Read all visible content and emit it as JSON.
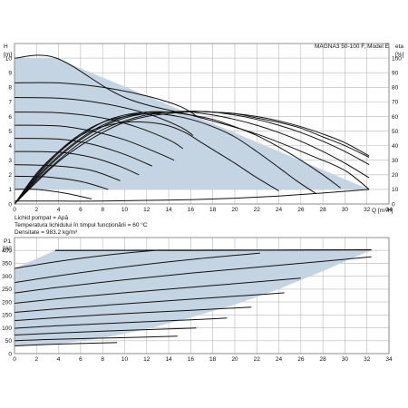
{
  "colors": {
    "fill": "#c5d4e2",
    "curve": "#111111",
    "grid": "#b9b9b9",
    "frame": "#777777"
  },
  "notes": [
    "Lichid pompat = Apă",
    "Temperatura lichidului în timpul funcționării = 60 °C",
    "Densitate = 983.2 kg/m³"
  ],
  "chart_data": [
    {
      "type": "line",
      "title": "MAGNA3 50-100 F, Model E",
      "ylabel": "H",
      "yunit": "[m]",
      "y2label": "eta",
      "y2unit": "[%]",
      "xlabel": "Q [m³/h]",
      "xlim": [
        0,
        34
      ],
      "ylim": [
        0,
        11
      ],
      "y2lim": [
        0,
        110
      ],
      "x_ticks": [
        0,
        2,
        4,
        6,
        8,
        10,
        12,
        14,
        16,
        18,
        20,
        22,
        24,
        26,
        28,
        30,
        32,
        34
      ],
      "y_ticks": [
        0,
        1,
        2,
        3,
        4,
        5,
        6,
        7,
        8,
        9,
        10
      ],
      "y2_ticks": [
        0,
        10,
        20,
        30,
        40,
        50,
        60,
        70,
        80,
        90,
        100
      ],
      "grid": true,
      "operating_envelope": [
        [
          0,
          10
        ],
        [
          3.8,
          10
        ],
        [
          16.5,
          6.0
        ],
        [
          32.2,
          1.0
        ],
        [
          0,
          1.0
        ]
      ],
      "series": [
        {
          "values": [
            [
              0,
              10
            ],
            [
              3.8,
              10
            ],
            [
              10,
              7.3
            ],
            [
              16.5,
              6.0
            ],
            [
              22,
              4.8
            ],
            [
              27,
              3.3
            ],
            [
              30,
              2.3
            ],
            [
              32.2,
              1.0
            ]
          ]
        },
        {
          "values": [
            [
              0,
              8.3
            ],
            [
              4,
              8.3
            ],
            [
              8,
              8.0
            ],
            [
              12,
              7.4
            ],
            [
              15,
              6.7
            ],
            [
              16.6,
              6.0
            ]
          ]
        },
        {
          "values": [
            [
              0,
              7.3
            ],
            [
              4,
              7.25
            ],
            [
              8,
              6.9
            ],
            [
              12,
              6.2
            ],
            [
              15,
              5.3
            ],
            [
              16.2,
              4.7
            ]
          ]
        },
        {
          "values": [
            [
              0,
              6.3
            ],
            [
              4,
              6.25
            ],
            [
              8,
              5.9
            ],
            [
              11,
              5.3
            ],
            [
              14,
              4.4
            ],
            [
              15.3,
              3.8
            ]
          ]
        },
        {
          "values": [
            [
              0,
              5.4
            ],
            [
              4,
              5.35
            ],
            [
              7,
              5.0
            ],
            [
              10,
              4.4
            ],
            [
              13,
              3.5
            ],
            [
              14.5,
              3.0
            ]
          ]
        },
        {
          "values": [
            [
              0,
              4.5
            ],
            [
              4,
              4.45
            ],
            [
              7,
              4.1
            ],
            [
              10,
              3.4
            ],
            [
              12.5,
              2.6
            ]
          ]
        },
        {
          "values": [
            [
              0,
              3.6
            ],
            [
              4,
              3.55
            ],
            [
              7,
              3.2
            ],
            [
              9.5,
              2.6
            ],
            [
              11.3,
              2.0
            ]
          ]
        },
        {
          "values": [
            [
              0,
              2.7
            ],
            [
              4,
              2.6
            ],
            [
              7,
              2.3
            ],
            [
              9.6,
              1.6
            ]
          ]
        },
        {
          "values": [
            [
              0,
              1.9
            ],
            [
              3,
              1.85
            ],
            [
              6,
              1.55
            ],
            [
              8.5,
              1.0
            ]
          ]
        },
        {
          "values": [
            [
              0,
              1.0
            ],
            [
              2,
              1.0
            ],
            [
              4.5,
              0.75
            ],
            [
              7,
              0.35
            ]
          ]
        },
        {
          "values": [
            [
              0,
              0
            ],
            [
              2,
              2.1
            ],
            [
              4,
              3.6
            ],
            [
              6,
              4.7
            ],
            [
              8,
              5.3
            ],
            [
              10,
              5.6
            ],
            [
              12,
              5.6
            ],
            [
              13.8,
              5.4
            ],
            [
              15.5,
              4.9
            ],
            [
              17,
              4.2
            ],
            [
              18.5,
              3.5
            ],
            [
              20,
              2.8
            ],
            [
              21.8,
              1.9
            ],
            [
              24,
              0.9
            ]
          ]
        },
        {
          "values": [
            [
              0,
              0
            ],
            [
              2,
              2.0
            ],
            [
              4,
              3.6
            ],
            [
              6,
              4.8
            ],
            [
              8,
              5.6
            ],
            [
              10,
              6.0
            ],
            [
              12,
              6.2
            ],
            [
              14,
              6.1
            ],
            [
              16,
              5.8
            ],
            [
              18,
              5.3
            ],
            [
              20,
              4.6
            ],
            [
              22,
              3.6
            ],
            [
              24,
              2.5
            ],
            [
              25.6,
              1.6
            ],
            [
              27.4,
              0.7
            ]
          ]
        },
        {
          "values": [
            [
              0,
              0
            ],
            [
              2,
              1.9
            ],
            [
              4,
              3.5
            ],
            [
              6,
              4.7
            ],
            [
              8,
              5.6
            ],
            [
              10,
              6.1
            ],
            [
              12,
              6.3
            ],
            [
              14,
              6.3
            ],
            [
              16,
              6.1
            ],
            [
              18,
              5.8
            ],
            [
              20,
              5.3
            ],
            [
              22,
              4.7
            ],
            [
              24,
              3.9
            ],
            [
              26,
              3.0
            ],
            [
              28,
              2.0
            ],
            [
              29.6,
              1.1
            ]
          ]
        },
        {
          "values": [
            [
              0,
              0
            ],
            [
              2,
              1.8
            ],
            [
              4,
              3.3
            ],
            [
              6,
              4.5
            ],
            [
              8,
              5.4
            ],
            [
              10,
              6.0
            ],
            [
              12,
              6.3
            ],
            [
              14,
              6.3
            ],
            [
              16,
              6.3
            ],
            [
              18,
              6.1
            ],
            [
              20,
              5.8
            ],
            [
              22,
              5.4
            ],
            [
              24,
              4.9
            ],
            [
              26,
              4.3
            ],
            [
              28,
              3.6
            ],
            [
              30,
              2.8
            ],
            [
              32.2,
              1.8
            ]
          ]
        },
        {
          "values": [
            [
              0,
              0
            ],
            [
              2,
              1.7
            ],
            [
              4,
              3.2
            ],
            [
              6,
              4.4
            ],
            [
              8,
              5.3
            ],
            [
              10,
              5.9
            ],
            [
              12,
              6.2
            ],
            [
              14,
              6.3
            ],
            [
              16,
              6.35
            ],
            [
              18,
              6.3
            ],
            [
              20,
              6.1
            ],
            [
              22,
              5.8
            ],
            [
              24,
              5.4
            ],
            [
              26,
              4.9
            ],
            [
              28,
              4.3
            ],
            [
              30,
              3.6
            ],
            [
              32.2,
              2.7
            ]
          ]
        },
        {
          "values": [
            [
              0,
              0
            ],
            [
              2,
              1.6
            ],
            [
              4,
              3.0
            ],
            [
              6,
              4.2
            ],
            [
              8,
              5.1
            ],
            [
              10,
              5.7
            ],
            [
              12,
              6.1
            ],
            [
              14,
              6.3
            ],
            [
              16,
              6.35
            ],
            [
              18,
              6.3
            ],
            [
              20,
              6.2
            ],
            [
              22,
              5.9
            ],
            [
              24,
              5.6
            ],
            [
              26,
              5.2
            ],
            [
              28,
              4.6
            ],
            [
              30,
              4.0
            ],
            [
              32.2,
              3.2
            ]
          ]
        },
        {
          "values": [
            [
              0,
              0
            ],
            [
              2,
              1.5
            ],
            [
              4,
              2.9
            ],
            [
              6,
              4.0
            ],
            [
              8,
              4.9
            ],
            [
              10,
              5.6
            ],
            [
              12,
              6.0
            ],
            [
              14,
              6.2
            ],
            [
              16,
              6.35
            ],
            [
              18,
              6.3
            ],
            [
              20,
              6.2
            ],
            [
              22,
              6.0
            ],
            [
              24,
              5.7
            ],
            [
              26,
              5.3
            ],
            [
              28,
              4.8
            ],
            [
              30,
              4.2
            ],
            [
              32.2,
              3.3
            ]
          ]
        },
        {
          "values": [
            [
              0,
              0.2
            ],
            [
              4,
              0.2
            ],
            [
              8,
              0.2
            ],
            [
              12,
              0.25
            ],
            [
              16,
              0.3
            ],
            [
              20,
              0.4
            ],
            [
              24,
              0.55
            ],
            [
              28,
              0.75
            ],
            [
              32.2,
              1.0
            ]
          ]
        }
      ]
    },
    {
      "type": "line",
      "ylabel": "P1",
      "yunit": "[W]",
      "xlim": [
        0,
        34
      ],
      "ylim": [
        0,
        450
      ],
      "x_ticks": [
        0,
        2,
        4,
        6,
        8,
        10,
        12,
        14,
        16,
        18,
        20,
        22,
        24,
        26,
        28,
        30,
        32,
        34
      ],
      "y_ticks": [
        0,
        50,
        100,
        150,
        200,
        250,
        300,
        350,
        400
      ],
      "grid": true,
      "operating_envelope": [
        [
          0,
          30
        ],
        [
          0,
          330
        ],
        [
          3.7,
          400
        ],
        [
          32.4,
          400
        ],
        [
          31.5,
          385
        ],
        [
          28,
          320
        ],
        [
          24,
          250
        ],
        [
          20,
          190
        ],
        [
          16,
          140
        ],
        [
          12,
          95
        ],
        [
          8,
          60
        ],
        [
          4,
          38
        ],
        [
          0,
          30
        ]
      ],
      "series": [
        {
          "values": [
            [
              3.7,
              400
            ],
            [
              14,
              401
            ],
            [
              24,
              402
            ],
            [
              32.4,
              403
            ]
          ]
        },
        {
          "values": [
            [
              0,
              330
            ],
            [
              4,
              358
            ],
            [
              9,
              385
            ],
            [
              12.7,
              400
            ]
          ]
        },
        {
          "values": [
            [
              0,
              275
            ],
            [
              4,
              302
            ],
            [
              10,
              336
            ],
            [
              16,
              365
            ],
            [
              22.3,
              390
            ]
          ]
        },
        {
          "values": [
            [
              0,
              235
            ],
            [
              4,
              257
            ],
            [
              10,
              286
            ],
            [
              16,
              312
            ],
            [
              22,
              335
            ],
            [
              28,
              358
            ],
            [
              32.4,
              375
            ]
          ]
        },
        {
          "values": [
            [
              0,
              195
            ],
            [
              4,
              213
            ],
            [
              10,
              236
            ],
            [
              16,
              257
            ],
            [
              22,
              278
            ],
            [
              26,
              293
            ]
          ]
        },
        {
          "values": [
            [
              0,
              160
            ],
            [
              4,
              174
            ],
            [
              10,
              193
            ],
            [
              16,
              211
            ],
            [
              22,
              228
            ],
            [
              24.5,
              236
            ]
          ]
        },
        {
          "values": [
            [
              0,
              128
            ],
            [
              4,
              140
            ],
            [
              10,
              155
            ],
            [
              16,
              168
            ],
            [
              21.5,
              180
            ]
          ]
        },
        {
          "values": [
            [
              0,
              98
            ],
            [
              4,
              108
            ],
            [
              10,
              120
            ],
            [
              16,
              131
            ],
            [
              19.3,
              138
            ]
          ]
        },
        {
          "values": [
            [
              0,
              72
            ],
            [
              4,
              80
            ],
            [
              10,
              90
            ],
            [
              16.5,
              99
            ]
          ]
        },
        {
          "values": [
            [
              0,
              50
            ],
            [
              4,
              56
            ],
            [
              10,
              62
            ],
            [
              14.8,
              68
            ]
          ]
        },
        {
          "values": [
            [
              0,
              30
            ],
            [
              4,
              37
            ],
            [
              9.3,
              43
            ]
          ]
        },
        {
          "values": [
            [
              3.7,
              400
            ],
            [
              16,
              400
            ],
            [
              26,
              401
            ],
            [
              32.4,
              402
            ]
          ]
        }
      ]
    }
  ]
}
